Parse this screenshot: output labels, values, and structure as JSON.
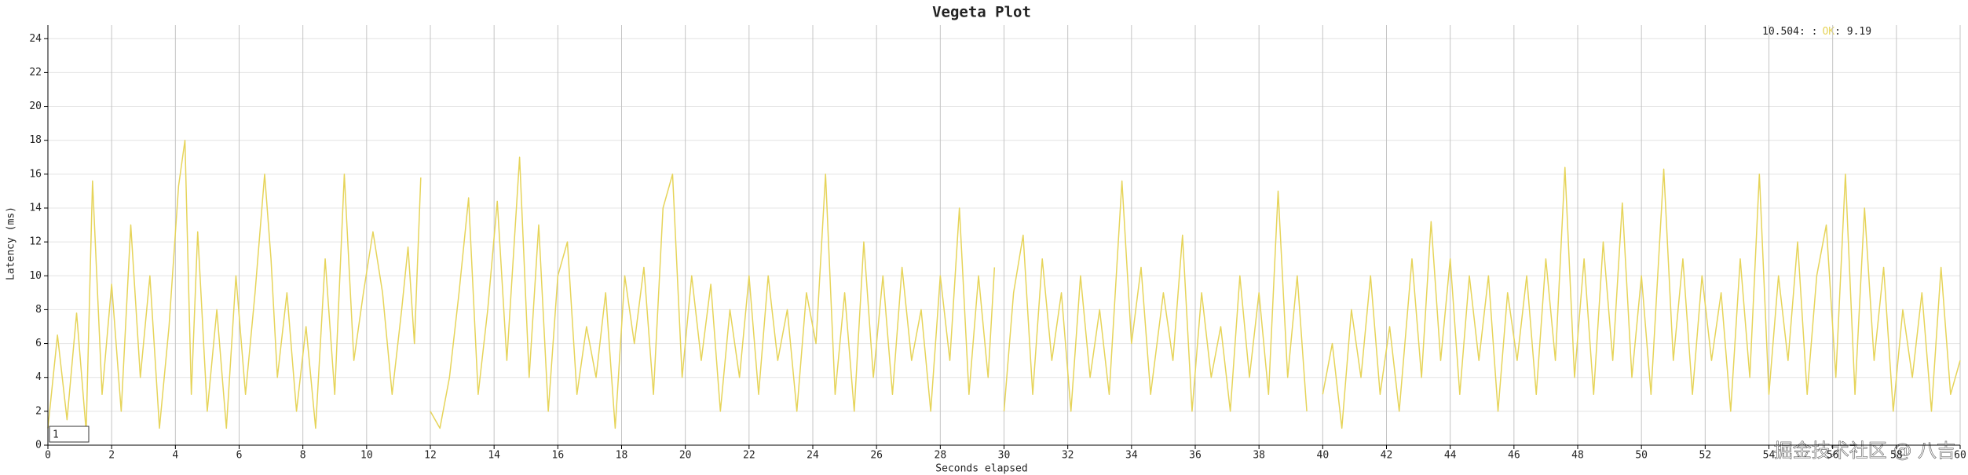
{
  "chart_data": {
    "type": "line",
    "title": "Vegeta Plot",
    "x_label": "Seconds elapsed",
    "y_label": "Latency (ms)",
    "xlim": [
      0,
      60
    ],
    "ylim": [
      0,
      24.8
    ],
    "xticks": [
      0,
      2,
      4,
      6,
      8,
      10,
      12,
      14,
      16,
      18,
      20,
      22,
      24,
      26,
      28,
      30,
      32,
      34,
      36,
      38,
      40,
      42,
      44,
      46,
      48,
      50,
      52,
      54,
      56,
      58,
      60
    ],
    "yticks": [
      0,
      2,
      4,
      6,
      8,
      10,
      12,
      14,
      16,
      18,
      20,
      22,
      24
    ],
    "grid": true,
    "legend_prefix": "10.504: :",
    "legend_suffix": ": 9.19",
    "roller": "1",
    "watermark": "掘金技术社区 @ 八吉",
    "x": [
      0,
      0.3,
      0.6,
      0.9,
      1.2,
      1.4,
      1.7,
      2.0,
      2.3,
      2.6,
      2.9,
      3.2,
      3.5,
      3.8,
      4.1,
      4.3,
      4.5,
      4.7,
      5.0,
      5.3,
      5.6,
      5.9,
      6.2,
      6.5,
      6.8,
      7.0,
      7.2,
      7.5,
      7.8,
      8.1,
      8.4,
      8.7,
      9.0,
      9.3,
      9.6,
      9.9,
      10.2,
      10.5,
      10.8,
      11.1,
      11.3,
      11.5,
      11.7,
      11.8,
      12.0,
      12.3,
      12.6,
      12.9,
      13.2,
      13.5,
      13.8,
      14.1,
      14.4,
      14.8,
      15.1,
      15.4,
      15.7,
      16.0,
      16.3,
      16.6,
      16.9,
      17.2,
      17.5,
      17.8,
      18.1,
      18.4,
      18.7,
      19.0,
      19.3,
      19.6,
      19.9,
      20.2,
      20.5,
      20.8,
      21.1,
      21.4,
      21.7,
      22.0,
      22.3,
      22.6,
      22.9,
      23.2,
      23.5,
      23.8,
      24.1,
      24.4,
      24.7,
      25.0,
      25.3,
      25.6,
      25.9,
      26.2,
      26.5,
      26.8,
      27.1,
      27.4,
      27.7,
      28.0,
      28.3,
      28.6,
      28.9,
      29.2,
      29.5,
      29.7,
      29.8,
      30.0,
      30.3,
      30.6,
      30.9,
      31.2,
      31.5,
      31.8,
      32.1,
      32.4,
      32.7,
      33.0,
      33.3,
      33.7,
      34.0,
      34.3,
      34.6,
      35.0,
      35.3,
      35.6,
      35.9,
      36.2,
      36.5,
      36.8,
      37.1,
      37.4,
      37.7,
      38.0,
      38.3,
      38.6,
      38.9,
      39.2,
      39.5,
      39.6,
      40.0,
      40.3,
      40.6,
      40.9,
      41.2,
      41.5,
      41.8,
      42.1,
      42.4,
      42.8,
      43.1,
      43.4,
      43.7,
      44.0,
      44.3,
      44.6,
      44.9,
      45.2,
      45.5,
      45.8,
      46.1,
      46.4,
      46.7,
      47.0,
      47.3,
      47.6,
      47.9,
      48.2,
      48.5,
      48.8,
      49.1,
      49.4,
      49.7,
      50.0,
      50.3,
      50.7,
      51.0,
      51.3,
      51.6,
      51.9,
      52.2,
      52.5,
      52.8,
      53.1,
      53.4,
      53.7,
      54.0,
      54.3,
      54.6,
      54.9,
      55.2,
      55.5,
      55.8,
      56.1,
      56.4,
      56.7,
      57.0,
      57.3,
      57.6,
      57.9,
      58.2,
      58.5,
      58.8,
      59.1,
      59.4,
      59.7,
      60.0
    ],
    "series": [
      {
        "name": "OK",
        "color": "#e6d45a",
        "values": [
          1,
          6.5,
          1.5,
          7.8,
          0.8,
          15.6,
          3,
          9.5,
          2,
          13,
          4,
          10,
          1,
          7,
          15.3,
          18,
          3,
          12.6,
          2,
          8,
          1,
          10,
          3,
          9,
          16,
          11,
          4,
          9,
          2,
          7,
          1,
          11,
          3,
          16,
          5,
          9,
          12.6,
          9,
          3,
          8,
          11.7,
          6,
          15.8,
          null,
          2,
          1,
          4,
          9,
          14.6,
          3,
          8,
          14.4,
          5,
          17,
          4,
          13,
          2,
          10,
          12,
          3,
          7,
          4,
          9,
          1,
          10,
          6,
          10.5,
          3,
          14,
          16,
          4,
          10,
          5,
          9.5,
          2,
          8,
          4,
          10,
          3,
          10,
          5,
          8,
          2,
          9,
          6,
          16,
          3,
          9,
          2,
          12,
          4,
          10,
          3,
          10.5,
          5,
          8,
          2,
          10,
          5,
          14,
          3,
          10,
          4,
          10.5,
          null,
          2,
          9,
          12.4,
          3,
          11,
          5,
          9,
          2,
          10,
          4,
          8,
          3,
          15.6,
          6,
          10.5,
          3,
          9,
          5,
          12.4,
          2,
          9,
          4,
          7,
          2,
          10,
          4,
          9,
          3,
          15,
          4,
          10,
          2,
          null,
          3,
          6,
          1,
          8,
          4,
          10,
          3,
          7,
          2,
          11,
          4,
          13.2,
          5,
          11,
          3,
          10,
          5,
          10,
          2,
          9,
          5,
          10,
          3,
          11,
          5,
          16.4,
          4,
          11,
          3,
          12,
          5,
          14.3,
          4,
          10,
          3,
          16.3,
          5,
          11,
          3,
          10,
          5,
          9,
          2,
          11,
          4,
          16,
          3,
          10,
          5,
          12,
          3,
          10,
          13,
          4,
          16,
          3,
          14,
          5,
          10.5,
          2,
          8,
          4,
          9,
          2,
          10.5,
          3,
          5
        ]
      }
    ]
  }
}
